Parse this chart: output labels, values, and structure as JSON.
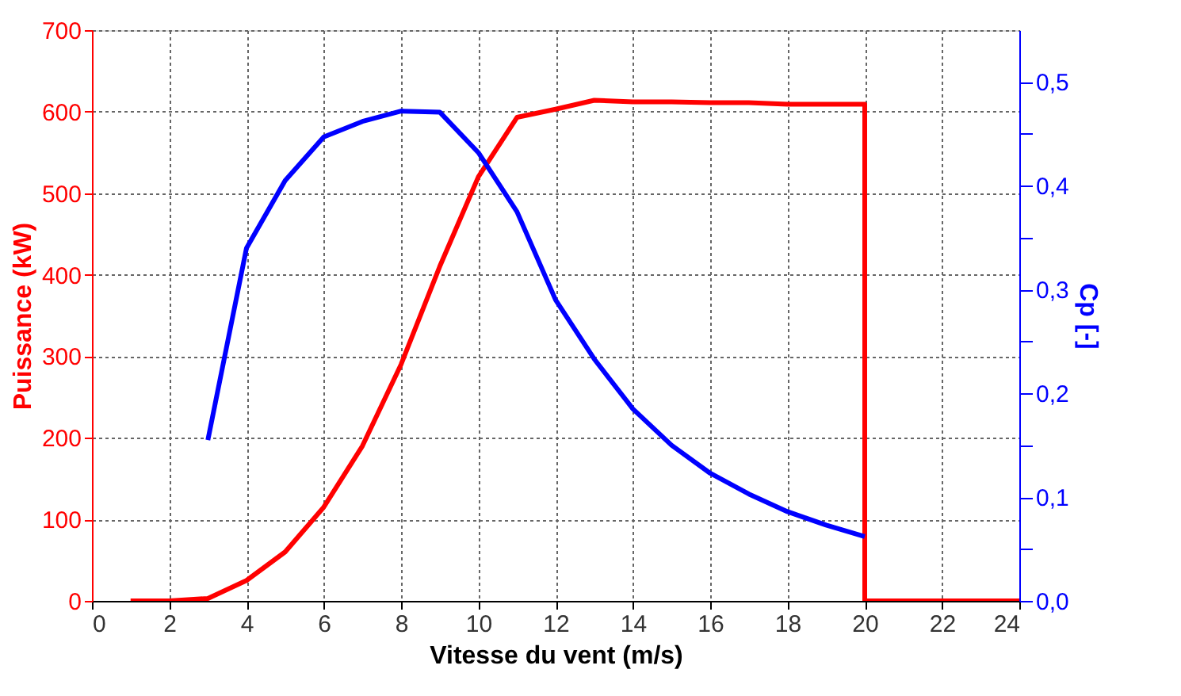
{
  "chart_data": {
    "type": "line",
    "xlabel": "Vitesse du vent (m/s)",
    "ylabel": "Puissance (kW)",
    "y2label": "Cp [-]",
    "xlim": [
      0,
      24
    ],
    "xticks": [
      0,
      2,
      4,
      6,
      8,
      10,
      12,
      14,
      16,
      18,
      20,
      22,
      24
    ],
    "ylim": [
      0,
      700
    ],
    "yticks": [
      0,
      100,
      200,
      300,
      400,
      500,
      600,
      700
    ],
    "y2lim": [
      0,
      0.55
    ],
    "y2ticks": [
      {
        "value": 0,
        "label": "0,0"
      },
      {
        "value": 0.05,
        "label": null
      },
      {
        "value": 0.1,
        "label": "0,1"
      },
      {
        "value": 0.15,
        "label": null
      },
      {
        "value": 0.2,
        "label": "0,2"
      },
      {
        "value": 0.25,
        "label": null
      },
      {
        "value": 0.3,
        "label": "0,3"
      },
      {
        "value": 0.35,
        "label": null
      },
      {
        "value": 0.4,
        "label": "0,4"
      },
      {
        "value": 0.45,
        "label": null
      },
      {
        "value": 0.5,
        "label": "0,5"
      }
    ],
    "grid": true,
    "line_style": "solid",
    "marker": "none",
    "series": [
      {
        "color": "#ff0000",
        "x": [
          1,
          2,
          3,
          4,
          5,
          6,
          7,
          8,
          9,
          10,
          11,
          12,
          13,
          14,
          15,
          16,
          17,
          18,
          19,
          20,
          20,
          24
        ],
        "values": [
          0,
          0,
          3,
          25,
          60,
          115,
          190,
          290,
          410,
          520,
          593,
          603,
          614,
          612,
          612,
          611,
          611,
          609,
          609,
          609,
          0,
          0
        ]
      },
      {
        "color": "#0000ff",
        "axis": "y2",
        "x": [
          3,
          4,
          5,
          6,
          7,
          8,
          9,
          10,
          11,
          12,
          13,
          14,
          15,
          16,
          17,
          18,
          19,
          20
        ],
        "values": [
          0.155,
          0.34,
          0.405,
          0.447,
          0.462,
          0.472,
          0.471,
          0.432,
          0.375,
          0.29,
          0.233,
          0.185,
          0.15,
          0.123,
          0.103,
          0.086,
          0.073,
          0.062
        ]
      }
    ]
  }
}
